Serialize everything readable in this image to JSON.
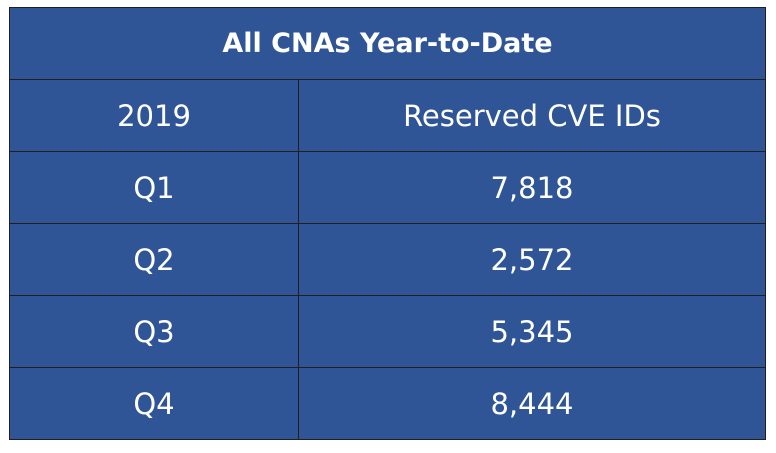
{
  "table": {
    "title": "All CNAs Year-to-Date",
    "header": [
      "2019",
      "Reserved CVE IDs"
    ],
    "rows": [
      [
        "Q1",
        "7,818"
      ],
      [
        "Q2",
        "2,572"
      ],
      [
        "Q3",
        "5,345"
      ],
      [
        "Q4",
        "8,444"
      ]
    ]
  }
}
